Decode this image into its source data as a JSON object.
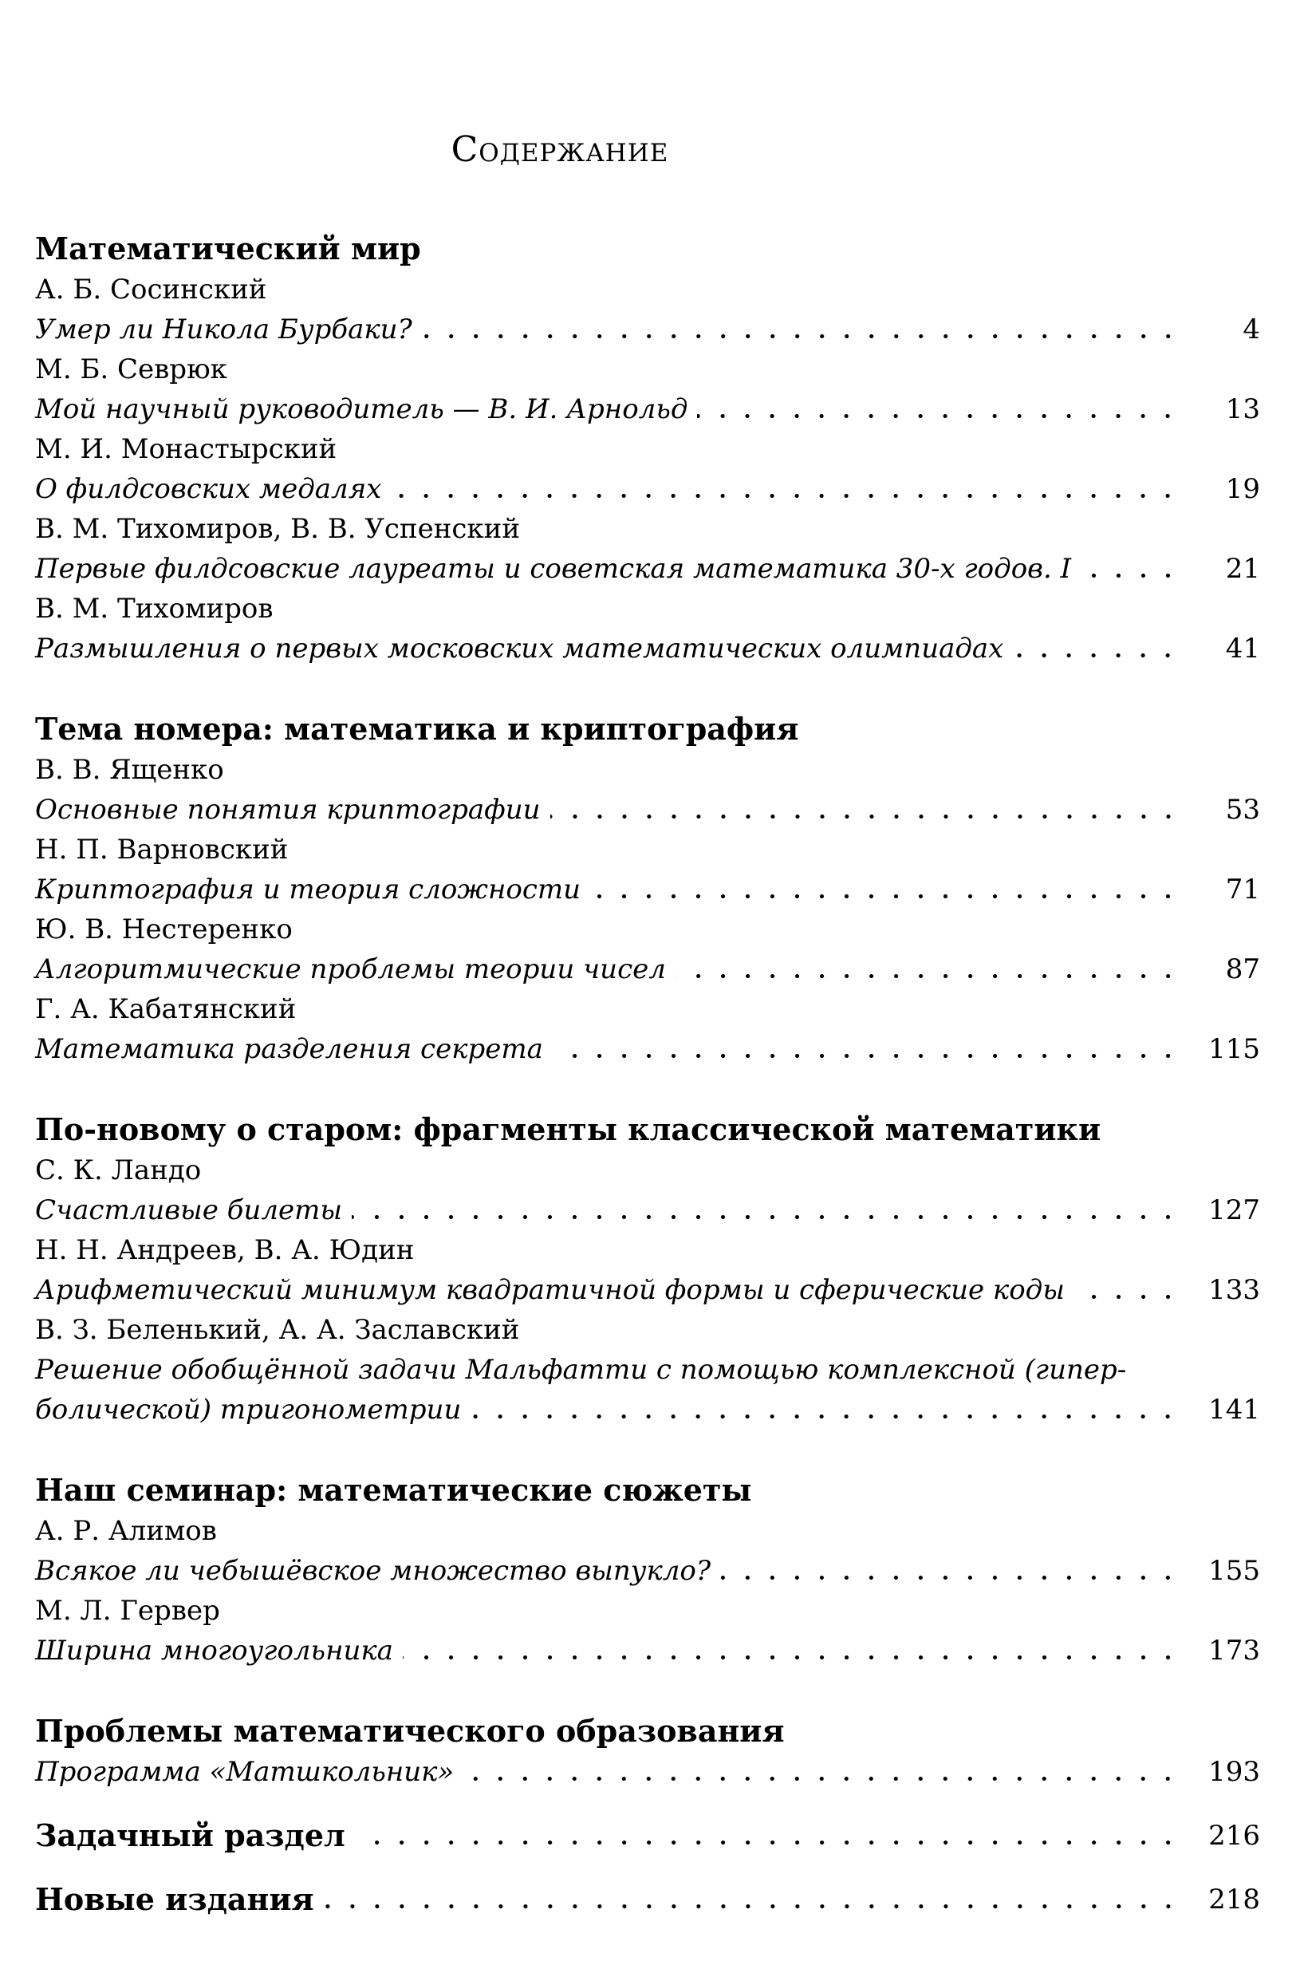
{
  "title": "Содержание",
  "sections": [
    {
      "heading": "Математический мир",
      "entries": [
        {
          "author": "А. Б. Сосинский",
          "title": "Умер ли Никола Бурбаки?",
          "page": "4"
        },
        {
          "author": "М. Б. Севрюк",
          "title": "Мой научный руководитель — В. И. Арнольд",
          "page": "13"
        },
        {
          "author": "М. И. Монастырский",
          "title": "О филдсовских медалях",
          "page": "19"
        },
        {
          "author": "В. М. Тихомиров, В. В. Успенский",
          "title": "Первые филдсовские лауреаты и советская математика 30-х годов. I",
          "page": "21"
        },
        {
          "author": "В. М. Тихомиров",
          "title": "Размышления о первых московских математических олимпиадах",
          "page": "41"
        }
      ]
    },
    {
      "heading": "Тема номера: математика и криптография",
      "entries": [
        {
          "author": "В. В. Ященко",
          "title": "Основные понятия криптографии",
          "page": "53"
        },
        {
          "author": "Н. П. Варновский",
          "title": "Криптография и теория сложности",
          "page": "71"
        },
        {
          "author": "Ю. В. Нестеренко",
          "title": "Алгоритмические проблемы теории чисел",
          "page": "87"
        },
        {
          "author": "Г. А. Кабатянский",
          "title": "Математика разделения секрета",
          "page": "115"
        }
      ]
    },
    {
      "heading": "По-новому о старом: фрагменты классической математики",
      "entries": [
        {
          "author": "С. К. Ландо",
          "title": "Счастливые билеты",
          "page": "127"
        },
        {
          "author": "Н. Н. Андреев, В. А. Юдин",
          "title": "Арифметический минимум квадратичной формы и сферические коды",
          "page": "133"
        },
        {
          "author": "В. З. Беленький, А. А. Заславский",
          "title_lines": [
            "Решение обобщённой задачи Мальфатти с помощью комплексной (гипер-",
            "болической) тригонометрии"
          ],
          "page": "141"
        }
      ]
    },
    {
      "heading": "Наш семинар: математические сюжеты",
      "entries": [
        {
          "author": "А. Р. Алимов",
          "title": "Всякое ли чебышёвское множество выпукло?",
          "page": "155"
        },
        {
          "author": "М. Л. Гервер",
          "title": "Ширина многоугольника",
          "page": "173"
        }
      ]
    },
    {
      "heading": "Проблемы математического образования",
      "entries": [
        {
          "title": "Программа «Матшкольник»",
          "page": "193"
        }
      ]
    }
  ],
  "heading_entries": [
    {
      "label": "Задачный раздел",
      "page": "216"
    },
    {
      "label": "Новые издания",
      "page": "218"
    }
  ]
}
